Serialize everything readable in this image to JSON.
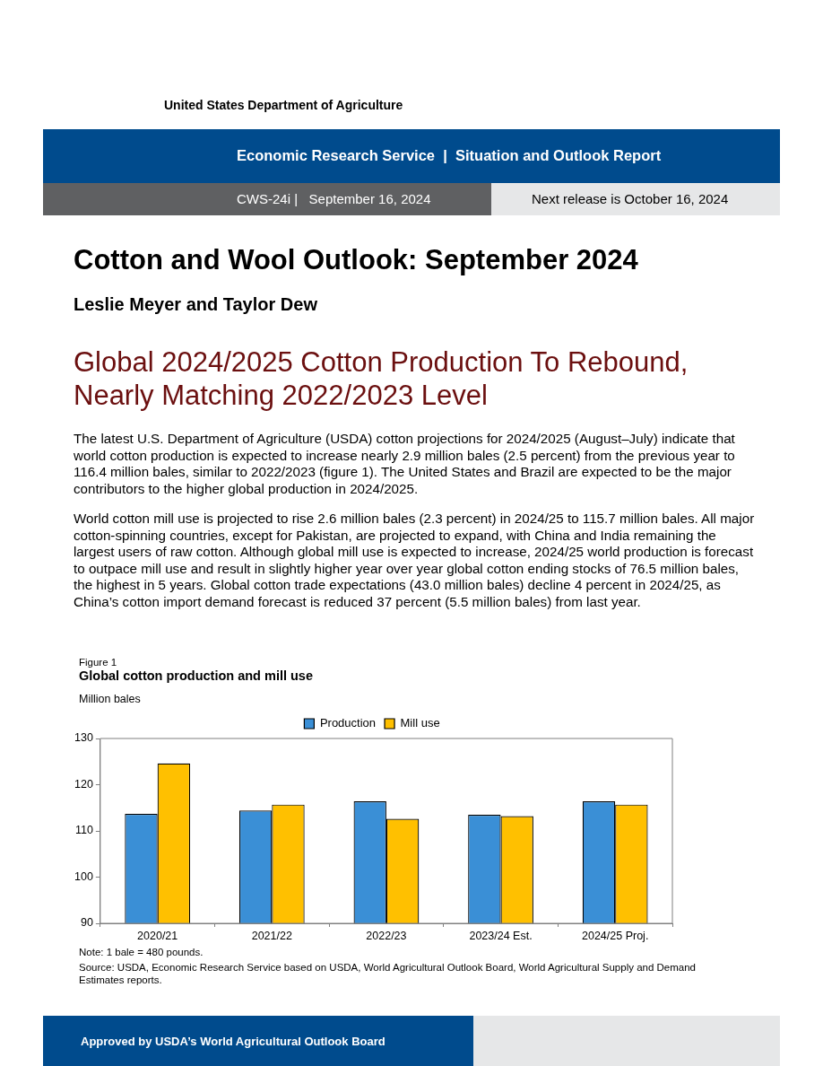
{
  "chart_data": {
    "type": "bar",
    "title": "Global cotton production and mill use",
    "ylabel": "Million bales",
    "categories": [
      "2020/21",
      "2021/22",
      "2022/23",
      "2023/24 Est.",
      "2024/25 Proj."
    ],
    "series": [
      {
        "name": "Production",
        "color": "#3a8fd6",
        "values": [
          113.7,
          114.4,
          116.4,
          113.5,
          116.4
        ]
      },
      {
        "name": "Mill use",
        "color": "#ffc000",
        "values": [
          124.6,
          115.7,
          112.6,
          113.2,
          115.7
        ]
      }
    ],
    "ylim": [
      90,
      130
    ],
    "yticks": [
      90,
      100,
      110,
      120,
      130
    ],
    "grid": false,
    "legend": "top",
    "annotations": [
      "United States Department of Agriculture",
      "Economic Research Service  |  Situation and Outlook Report",
      "CWS-24i |   September 16, 2024",
      "Next release is October 16, 2024",
      "Cotton and Wool Outlook: September 2024",
      "Leslie Meyer and Taylor Dew",
      "Global 2024/2025 Cotton Production To Rebound, Nearly Matching 2022/2023 Level",
      "The latest U.S. Department of Agriculture (USDA) cotton projections for 2024/2025 (August–July) indicate that world cotton production is expected to increase nearly 2.9 million bales (2.5 percent) from the previous year to 116.4 million bales, similar to 2022/2023 (figure 1). The United States and Brazil are expected to be the major contributors to the higher global production in 2024/2025.",
      "World cotton mill use is projected to rise 2.6 million bales (2.3 percent) in 2024/25 to 115.7 million bales. All major cotton-spinning countries, except for Pakistan, are projected to expand, with China and India remaining the largest users of raw cotton. Although global mill use is expected to increase, 2024/25 world production is forecast to outpace mill use and result in slightly higher year over year global cotton ending stocks of 76.5 million bales, the highest in 5 years. Global cotton trade expectations (43.0 million bales) decline 4 percent in 2024/25, as China’s cotton import demand forecast is reduced 37 percent (5.5 million bales) from last year.",
      "Figure 1",
      "Note: 1 bale = 480 pounds.",
      "Source: USDA, Economic Research Service based on USDA, World Agricultural Outlook Board, World Agricultural Supply and Demand Estimates reports.",
      "Approved by USDA’s World Agricultural Outlook Board"
    ]
  }
}
